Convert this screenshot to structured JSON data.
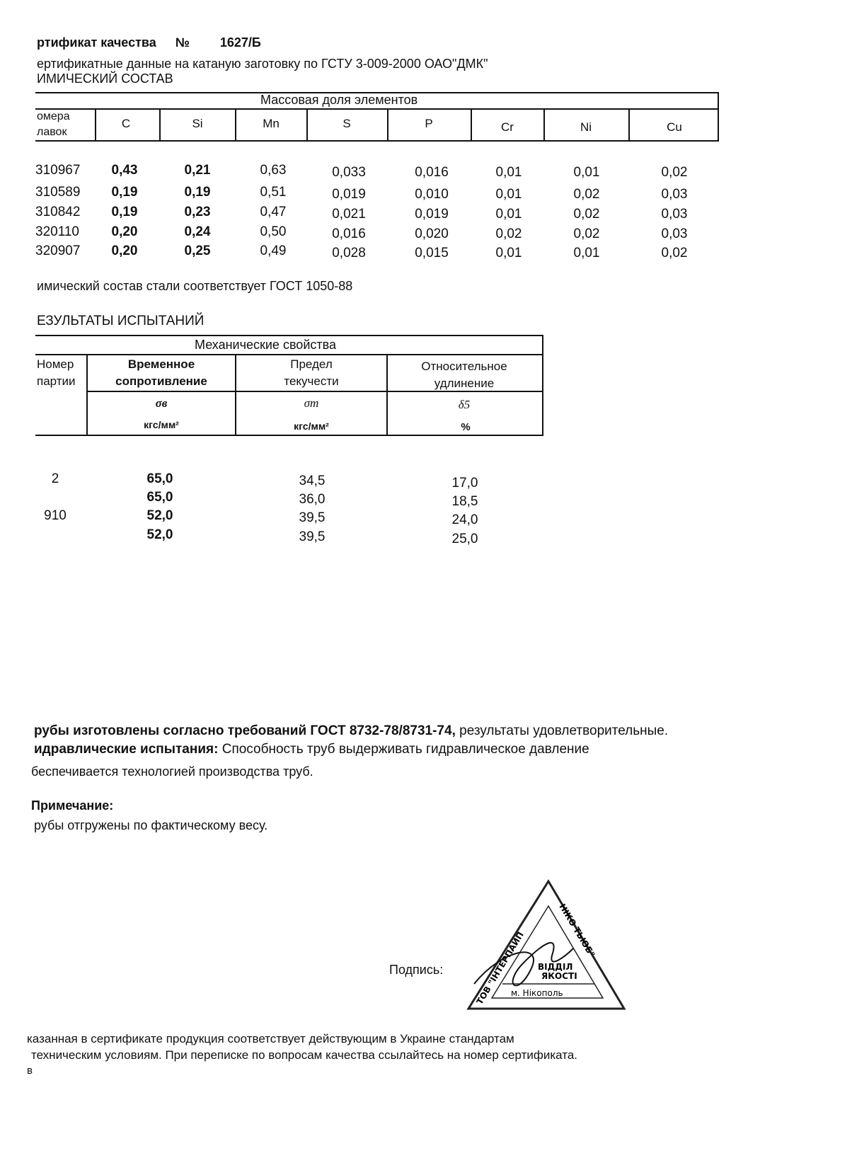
{
  "header": {
    "title_label": "ртификат качества",
    "number_sign": "№",
    "number": "1627/Б",
    "subtitle": "ертификатные данные на катаную заготовку по ГСТУ 3-009-2000 ОАО\"ДМК\"",
    "chem_heading": "ИМИЧЕСКИЙ СОСТАВ"
  },
  "chem_table": {
    "group_header": "Массовая доля элементов",
    "heat_header": [
      "омера",
      "лавок"
    ],
    "columns": [
      "C",
      "Si",
      "Mn",
      "S",
      "P",
      "Cr",
      "Ni",
      "Cu"
    ],
    "rows": [
      {
        "heat": "310967",
        "values": [
          "0,43",
          "0,21",
          "0,63",
          "0,033",
          "0,016",
          "0,01",
          "0,01",
          "0,02"
        ]
      },
      {
        "heat": "310589",
        "values": [
          "0,19",
          "0,19",
          "0,51",
          "0,019",
          "0,010",
          "0,01",
          "0,02",
          "0,03"
        ]
      },
      {
        "heat": "310842",
        "values": [
          "0,19",
          "0,23",
          "0,47",
          "0,021",
          "0,019",
          "0,01",
          "0,02",
          "0,03"
        ]
      },
      {
        "heat": "320110",
        "values": [
          "0,20",
          "0,24",
          "0,50",
          "0,016",
          "0,020",
          "0,02",
          "0,02",
          "0,03"
        ]
      },
      {
        "heat": "320907",
        "values": [
          "0,20",
          "0,25",
          "0,49",
          "0,028",
          "0,015",
          "0,01",
          "0,01",
          "0,02"
        ]
      }
    ],
    "conformity": "имический состав стали соответствует ГОСТ  1050-88"
  },
  "mech": {
    "heading": "ЕЗУЛЬТАТЫ ИСПЫТАНИЙ",
    "group_header": "Механические свойства",
    "party_header": [
      "Номер",
      "партии"
    ],
    "columns": [
      {
        "name": [
          "Временное",
          "сопротивление"
        ],
        "symbol": "σв",
        "unit": "кгс/мм²"
      },
      {
        "name": [
          "Предел",
          "текучести"
        ],
        "symbol": "σт",
        "unit": "кгс/мм²"
      },
      {
        "name": [
          "Относительное",
          "удлинение"
        ],
        "symbol": "δ5",
        "unit": "%"
      }
    ],
    "rows": [
      {
        "party": "2",
        "values": [
          "65,0",
          "34,5",
          "17,0"
        ]
      },
      {
        "party": "",
        "values": [
          "65,0",
          "36,0",
          "18,5"
        ]
      },
      {
        "party": "910",
        "values": [
          "52,0",
          "39,5",
          "24,0"
        ]
      },
      {
        "party": "",
        "values": [
          "52,0",
          "39,5",
          "25,0"
        ]
      }
    ]
  },
  "notes": {
    "line1_bold": "рубы изготовлены согласно требований ГОСТ 8732-78/8731-74,",
    "line1_rest": " результаты удовлетворительные.",
    "line2_bold": "идравлические испытания:",
    "line2_rest": " Способность труб выдерживать гидравлическое давление",
    "line3": "беспечивается технологией производства труб.",
    "remark_heading": "Примечание:",
    "remark": "рубы отгружены по фактическому весу."
  },
  "signature": {
    "label": "Подпись:",
    "stamp_text": "ТОВ \"ИНТЕРПАЙП НІКО ТЬЮБ\" ВІДДІЛ ЯКОСТІ м. Нікополь"
  },
  "footer": {
    "line1": "казанная в сертификате продукция соответствует действующим в Украине стандартам",
    "line2": "техническим условиям. При переписке по вопросам качества ссылайтесь на номер сертификата.",
    "line3": "в"
  }
}
